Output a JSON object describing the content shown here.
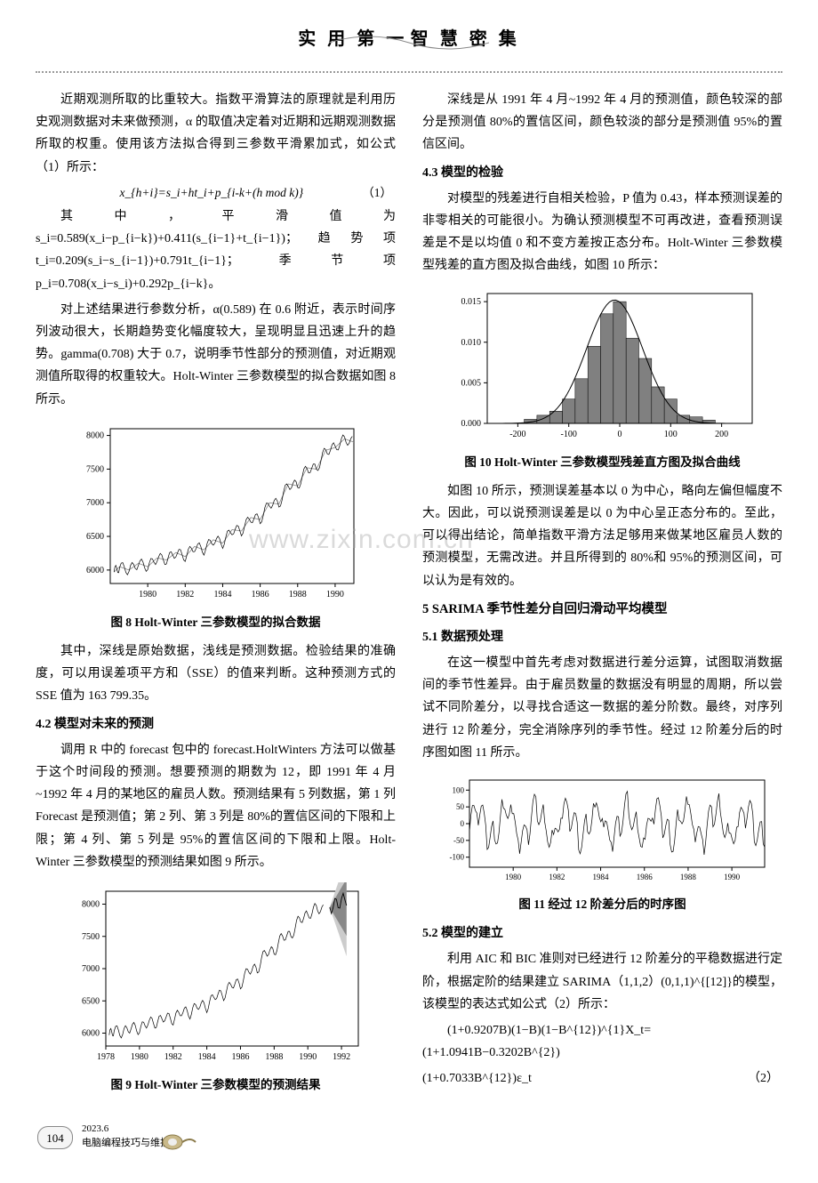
{
  "header": {
    "title_left": "实 用 第 一",
    "title_right": "智 慧 密 集"
  },
  "left_column": {
    "p1": "近期观测所取的比重较大。指数平滑算法的原理就是利用历史观测数据对未来做预测，α 的取值决定着对近期和远期观测数据所取的权重。使用该方法拟合得到三参数平滑累加式，如公式（1）所示：",
    "formula1": "x_{h+i}=s_i+ht_i+p_{i-k+(h mod k)}",
    "formula1_num": "（1）",
    "p2": "其中，平滑值为 s_i=0.589(x_i−p_{i−k})+0.411(s_{i−1}+t_{i−1})；趋势项 t_i=0.209(s_i−s_{i−1})+0.791t_{i−1}；季节项 p_i=0.708(x_i−s_i)+0.292p_{i−k}。",
    "p3": "对上述结果进行参数分析，α(0.589) 在 0.6 附近，表示时间序列波动很大，长期趋势变化幅度较大，呈现明显且迅速上升的趋势。gamma(0.708) 大于 0.7，说明季节性部分的预测值，对近期观测值所取得的权重较大。Holt-Winter 三参数模型的拟合数据如图 8 所示。",
    "fig8": {
      "type": "line",
      "box_color": "#000000",
      "background_color": "#ffffff",
      "xlim": [
        1978,
        1991
      ],
      "ylim": [
        5800,
        8100
      ],
      "xticks": [
        1980,
        1982,
        1984,
        1986,
        1988,
        1990
      ],
      "yticks": [
        6000,
        6500,
        7000,
        7500,
        8000
      ],
      "line_color": "#000000",
      "series_years": [
        1978.2,
        1978.5,
        1979.0,
        1979.5,
        1980.0,
        1980.5,
        1981.0,
        1981.5,
        1982.0,
        1982.5,
        1983.0,
        1983.5,
        1984.0,
        1984.5,
        1985.0,
        1985.5,
        1986.0,
        1986.5,
        1987.0,
        1987.5,
        1988.0,
        1988.5,
        1989.0,
        1989.5,
        1990.0,
        1990.5,
        1991.0
      ],
      "series_vals": [
        5970,
        6050,
        6000,
        6100,
        6050,
        6180,
        6150,
        6260,
        6200,
        6350,
        6300,
        6450,
        6400,
        6600,
        6580,
        6780,
        6750,
        7000,
        6980,
        7280,
        7250,
        7520,
        7500,
        7780,
        7820,
        7950,
        7900
      ],
      "thin_color": "#888888",
      "caption": "图 8   Holt-Winter 三参数模型的拟合数据"
    },
    "p4": "其中，深线是原始数据，浅线是预测数据。检验结果的准确度，可以用误差项平方和（SSE）的值来判断。这种预测方式的 SSE 值为 163 799.35。",
    "s42_title": "4.2   模型对未来的预测",
    "p5": "调用 R 中的 forecast 包中的 forecast.HoltWinters 方法可以做基于这个时间段的预测。想要预测的期数为 12，即 1991 年 4 月~1992 年 4 月的某地区的雇员人数。预测结果有 5 列数据，第 1 列 Forecast 是预测值；第 2 列、第 3 列是 80%的置信区间的下限和上限；第 4 列、第 5 列是 95%的置信区间的下限和上限。Holt-Winter 三参数模型的预测结果如图 9 所示。",
    "fig9": {
      "type": "line",
      "box_color": "#000000",
      "background_color": "#ffffff",
      "xlim": [
        1978,
        1993
      ],
      "ylim": [
        5800,
        8200
      ],
      "xticks": [
        1978,
        1980,
        1982,
        1984,
        1986,
        1988,
        1990,
        1992
      ],
      "yticks": [
        6000,
        6500,
        7000,
        7500,
        8000
      ],
      "line_color": "#000000",
      "forecast_fill_outer": "#cccccc",
      "forecast_fill_inner": "#888888",
      "caption": "图 9   Holt-Winter 三参数模型的预测结果"
    }
  },
  "right_column": {
    "p1": "深线是从 1991 年 4 月~1992 年 4 月的预测值，颜色较深的部分是预测值 80%的置信区间，颜色较淡的部分是预测值 95%的置信区间。",
    "s43_title": "4.3   模型的检验",
    "p2": "对模型的残差进行自相关检验，P 值为 0.43，样本预测误差的非零相关的可能很小。为确认预测模型不可再改进，查看预测误差是不是以均值 0 和不变方差按正态分布。Holt-Winter 三参数模型残差的直方图及拟合曲线，如图 10 所示：",
    "fig10": {
      "type": "histogram",
      "box_color": "#000000",
      "background_color": "#ffffff",
      "xlim": [
        -260,
        260
      ],
      "ylim": [
        0,
        0.016
      ],
      "xticks": [
        -200,
        -100,
        0,
        100,
        200
      ],
      "yticks_labels": [
        "0.000",
        "0.005",
        "0.010",
        "0.015"
      ],
      "bar_color": "#808080",
      "bar_border": "#000000",
      "curve_color": "#000000",
      "bins_centers": [
        -175,
        -150,
        -125,
        -100,
        -75,
        -50,
        -25,
        0,
        25,
        50,
        75,
        100,
        125,
        150,
        175
      ],
      "bins_heights": [
        0.0005,
        0.001,
        0.0015,
        0.003,
        0.0055,
        0.0095,
        0.0135,
        0.015,
        0.0105,
        0.008,
        0.0045,
        0.003,
        0.001,
        0.0008,
        0.0004
      ],
      "caption": "图 10   Holt-Winter 三参数模型残差直方图及拟合曲线"
    },
    "p3": "如图 10 所示，预测误差基本以 0 为中心，略向左偏但幅度不大。因此，可以说预测误差是以 0 为中心呈正态分布的。至此，可以得出结论，简单指数平滑方法足够用来做某地区雇员人数的预测模型，无需改进。并且所得到的 80%和 95%的预测区间，可以认为是有效的。",
    "s5_title": "5   SARIMA 季节性差分自回归滑动平均模型",
    "s51_title": "5.1   数据预处理",
    "p4": "在这一模型中首先考虑对数据进行差分运算，试图取消数据间的季节性差异。由于雇员数量的数据没有明显的周期，所以尝试不同阶差分，以寻找合适这一数据的差分阶数。最终，对序列进行 12 阶差分，完全消除序列的季节性。经过 12 阶差分后的时序图如图 11 所示。",
    "fig11": {
      "type": "line",
      "box_color": "#000000",
      "background_color": "#ffffff",
      "xlim": [
        1978,
        1991.5
      ],
      "ylim": [
        -130,
        130
      ],
      "xticks": [
        1980,
        1982,
        1984,
        1986,
        1988,
        1990
      ],
      "yticks": [
        -100,
        -50,
        0,
        50,
        100
      ],
      "line_color": "#000000",
      "caption": "图 11   经过 12 阶差分后的时序图"
    },
    "s52_title": "5.2   模型的建立",
    "p5": "利用 AIC 和 BIC 准则对已经进行 12 阶差分的平稳数据进行定阶，根据定阶的结果建立 SARIMA（1,1,2）(0,1,1)^{[12]}的模型，该模型的表达式如公式（2）所示：",
    "formula2a": "(1+0.9207B)(1−B)(1−B^{12})^{1}X_t=(1+1.0941B−0.3202B^{2})",
    "formula2b": "(1+0.7033B^{12})ε_t",
    "formula2_num": "（2）"
  },
  "footer": {
    "page_number": "104",
    "date": "2023.6",
    "magazine": "电脑编程技巧与维护"
  },
  "watermark": "www.zixin.com.cn"
}
